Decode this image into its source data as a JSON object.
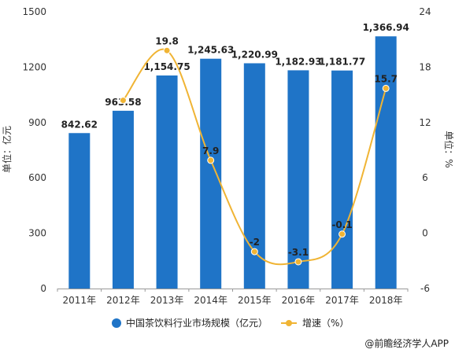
{
  "chart_data": {
    "type": "bar",
    "categories": [
      "2011年",
      "2012年",
      "2013年",
      "2014年",
      "2015年",
      "2016年",
      "2017年",
      "2018年"
    ],
    "series": [
      {
        "name": "中国茶饮料行业市场规模（亿元）",
        "type": "bar",
        "axis": "left",
        "values": [
          842.62,
          963.58,
          1154.75,
          1245.63,
          1220.99,
          1182.93,
          1181.77,
          1366.94
        ],
        "labels": [
          "842.62",
          "963.58",
          "1,154.75",
          "1,245.63",
          "1,220.99",
          "1,182.93",
          "1,181.77",
          "1,366.94"
        ],
        "color": "#1f74c7"
      },
      {
        "name": "增速（%）",
        "type": "line",
        "axis": "right",
        "values": [
          null,
          14.4,
          19.8,
          7.9,
          -2,
          -3.1,
          -0.1,
          15.7
        ],
        "labels": [
          "",
          "",
          "19.8",
          "7.9",
          "-2",
          "-3.1",
          "-0.1",
          "15.7"
        ],
        "color": "#f0b434"
      }
    ],
    "y_left": {
      "label": "单位：亿元",
      "ylim": [
        0,
        1500
      ],
      "ticks": [
        "0",
        "300",
        "600",
        "900",
        "1200",
        "1500"
      ]
    },
    "y_right": {
      "label": "单位：%",
      "ylim": [
        -6,
        24
      ],
      "ticks": [
        "-6",
        "0",
        "6",
        "12",
        "18",
        "24"
      ]
    },
    "grid": false,
    "legend_position": "bottom"
  },
  "credit": "@前瞻经济学人APP"
}
